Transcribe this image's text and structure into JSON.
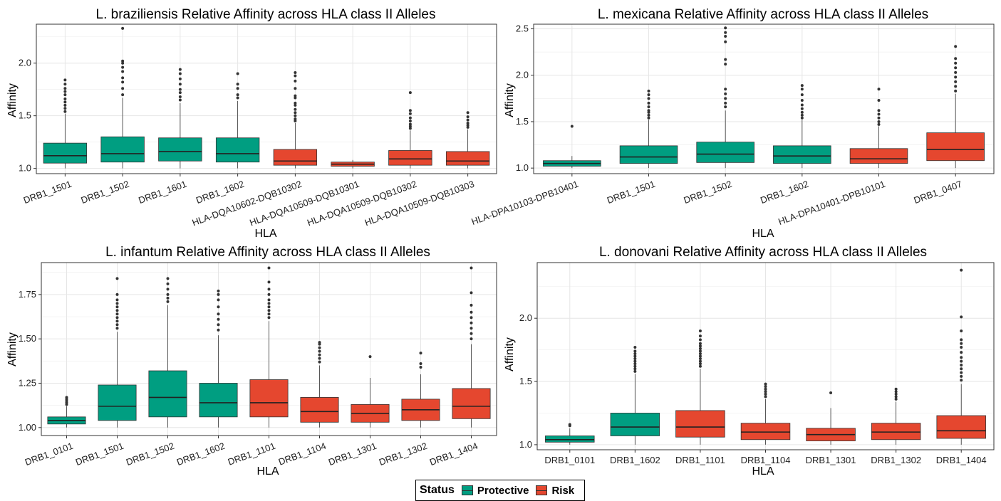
{
  "colors": {
    "Protective": "#009E81",
    "Risk": "#E5472F"
  },
  "legend": {
    "title": "Status",
    "items": [
      {
        "label": "Protective"
      },
      {
        "label": "Risk"
      }
    ]
  },
  "chart_data": [
    {
      "type": "box",
      "title": "L. braziliensis Relative Affinity across HLA class II Alleles",
      "xlabel": "HLA",
      "ylabel": "Affinity",
      "ylim": [
        0.95,
        2.37
      ],
      "yticks": [
        1.0,
        1.5,
        2.0
      ],
      "ytick_labels": [
        "1.0",
        "1.5",
        "2.0"
      ],
      "categories": [
        "DRB1_1501",
        "DRB1_1502",
        "DRB1_1601",
        "DRB1_1602",
        "HLA-DQA10602-DQB10302",
        "HLA-DQA10509-DQB10301",
        "HLA-DQA10509-DQB10302",
        "HLA-DQA10509-DQB10303"
      ],
      "boxes": [
        {
          "status": "Protective",
          "min": 1.0,
          "q1": 1.05,
          "median": 1.12,
          "q3": 1.24,
          "max": 1.52,
          "outliers": [
            1.54,
            1.57,
            1.6,
            1.63,
            1.66,
            1.7,
            1.73,
            1.76,
            1.8,
            1.84
          ]
        },
        {
          "status": "Protective",
          "min": 1.0,
          "q1": 1.06,
          "median": 1.14,
          "q3": 1.3,
          "max": 1.67,
          "outliers": [
            1.7,
            1.76,
            1.82,
            1.86,
            1.92,
            1.96,
            2.0,
            2.02,
            2.33
          ]
        },
        {
          "status": "Protective",
          "min": 1.0,
          "q1": 1.07,
          "median": 1.16,
          "q3": 1.29,
          "max": 1.62,
          "outliers": [
            1.65,
            1.68,
            1.72,
            1.75,
            1.8,
            1.85,
            1.9,
            1.94
          ]
        },
        {
          "status": "Protective",
          "min": 1.0,
          "q1": 1.06,
          "median": 1.14,
          "q3": 1.29,
          "max": 1.64,
          "outliers": [
            1.67,
            1.7,
            1.76,
            1.8,
            1.9
          ]
        },
        {
          "status": "Risk",
          "min": 1.0,
          "q1": 1.03,
          "median": 1.07,
          "q3": 1.18,
          "max": 1.43,
          "outliers": [
            1.45,
            1.47,
            1.5,
            1.53,
            1.56,
            1.6,
            1.62,
            1.67,
            1.69,
            1.76,
            1.83,
            1.88,
            1.91
          ]
        },
        {
          "status": "Risk",
          "min": 1.0,
          "q1": 1.02,
          "median": 1.04,
          "q3": 1.06,
          "max": 1.08,
          "outliers": []
        },
        {
          "status": "Risk",
          "min": 1.0,
          "q1": 1.03,
          "median": 1.09,
          "q3": 1.17,
          "max": 1.36,
          "outliers": [
            1.38,
            1.4,
            1.42,
            1.45,
            1.48,
            1.52,
            1.55,
            1.72
          ]
        },
        {
          "status": "Risk",
          "min": 1.0,
          "q1": 1.03,
          "median": 1.07,
          "q3": 1.16,
          "max": 1.37,
          "outliers": [
            1.39,
            1.41,
            1.43,
            1.46,
            1.49,
            1.53
          ]
        }
      ]
    },
    {
      "type": "box",
      "title": "L. mexicana Relative Affinity across HLA class II Alleles",
      "xlabel": "HLA",
      "ylabel": "Affinity",
      "ylim": [
        0.94,
        2.55
      ],
      "yticks": [
        1.0,
        1.5,
        2.0,
        2.5
      ],
      "ytick_labels": [
        "1.0",
        "1.5",
        "2.0",
        "2.5"
      ],
      "categories": [
        "HLA-DPA10103-DPB10401",
        "DRB1_1501",
        "DRB1_1502",
        "DRB1_1602",
        "HLA-DPA10401-DPB10101",
        "DRB1_0407"
      ],
      "boxes": [
        {
          "status": "Protective",
          "min": 1.0,
          "q1": 1.02,
          "median": 1.05,
          "q3": 1.08,
          "max": 1.13,
          "outliers": [
            1.45
          ]
        },
        {
          "status": "Protective",
          "min": 1.0,
          "q1": 1.05,
          "median": 1.12,
          "q3": 1.24,
          "max": 1.52,
          "outliers": [
            1.54,
            1.57,
            1.6,
            1.62,
            1.66,
            1.7,
            1.75,
            1.79,
            1.83
          ]
        },
        {
          "status": "Protective",
          "min": 1.0,
          "q1": 1.06,
          "median": 1.15,
          "q3": 1.28,
          "max": 1.62,
          "outliers": [
            1.66,
            1.7,
            1.75,
            1.8,
            1.85,
            2.12,
            2.17,
            2.36,
            2.42,
            2.46,
            2.51
          ]
        },
        {
          "status": "Protective",
          "min": 1.0,
          "q1": 1.05,
          "median": 1.13,
          "q3": 1.24,
          "max": 1.52,
          "outliers": [
            1.54,
            1.57,
            1.6,
            1.64,
            1.68,
            1.73,
            1.79,
            1.85,
            1.89
          ]
        },
        {
          "status": "Risk",
          "min": 1.0,
          "q1": 1.05,
          "median": 1.1,
          "q3": 1.21,
          "max": 1.45,
          "outliers": [
            1.47,
            1.5,
            1.54,
            1.58,
            1.62,
            1.73,
            1.85
          ]
        },
        {
          "status": "Risk",
          "min": 1.0,
          "q1": 1.08,
          "median": 1.2,
          "q3": 1.38,
          "max": 1.8,
          "outliers": [
            1.83,
            1.88,
            1.93,
            1.98,
            2.03,
            2.08,
            2.13,
            2.18,
            2.31
          ]
        }
      ]
    },
    {
      "type": "box",
      "title": "L. infantum Relative Affinity across HLA class II Alleles",
      "xlabel": "HLA",
      "ylabel": "Affinity",
      "ylim": [
        0.955,
        1.93
      ],
      "yticks": [
        1.0,
        1.25,
        1.5,
        1.75
      ],
      "ytick_labels": [
        "1.00",
        "1.25",
        "1.50",
        "1.75"
      ],
      "categories": [
        "DRB1_0101",
        "DRB1_1501",
        "DRB1_1502",
        "DRB1_1602",
        "DRB1_1101",
        "DRB1_1104",
        "DRB1_1301",
        "DRB1_1302",
        "DRB1_1404"
      ],
      "boxes": [
        {
          "status": "Protective",
          "min": 1.0,
          "q1": 1.02,
          "median": 1.04,
          "q3": 1.06,
          "max": 1.12,
          "outliers": [
            1.13,
            1.14,
            1.15,
            1.16,
            1.17
          ]
        },
        {
          "status": "Protective",
          "min": 1.0,
          "q1": 1.04,
          "median": 1.12,
          "q3": 1.24,
          "max": 1.54,
          "outliers": [
            1.56,
            1.58,
            1.6,
            1.62,
            1.64,
            1.66,
            1.68,
            1.7,
            1.72,
            1.75,
            1.84
          ]
        },
        {
          "status": "Protective",
          "min": 1.0,
          "q1": 1.06,
          "median": 1.17,
          "q3": 1.32,
          "max": 1.69,
          "outliers": [
            1.71,
            1.73,
            1.75,
            1.78,
            1.81,
            1.84
          ]
        },
        {
          "status": "Protective",
          "min": 1.0,
          "q1": 1.06,
          "median": 1.14,
          "q3": 1.25,
          "max": 1.52,
          "outliers": [
            1.55,
            1.58,
            1.61,
            1.64,
            1.68,
            1.72,
            1.75,
            1.77
          ]
        },
        {
          "status": "Risk",
          "min": 1.0,
          "q1": 1.06,
          "median": 1.14,
          "q3": 1.27,
          "max": 1.6,
          "outliers": [
            1.62,
            1.64,
            1.66,
            1.68,
            1.7,
            1.72,
            1.75,
            1.78,
            1.82,
            1.9
          ]
        },
        {
          "status": "Risk",
          "min": 1.0,
          "q1": 1.03,
          "median": 1.09,
          "q3": 1.17,
          "max": 1.35,
          "outliers": [
            1.37,
            1.39,
            1.41,
            1.43,
            1.45,
            1.47,
            1.48
          ]
        },
        {
          "status": "Risk",
          "min": 1.0,
          "q1": 1.03,
          "median": 1.08,
          "q3": 1.13,
          "max": 1.28,
          "outliers": [
            1.4
          ]
        },
        {
          "status": "Risk",
          "min": 1.0,
          "q1": 1.04,
          "median": 1.1,
          "q3": 1.16,
          "max": 1.3,
          "outliers": [
            1.34,
            1.36,
            1.42
          ]
        },
        {
          "status": "Risk",
          "min": 1.0,
          "q1": 1.05,
          "median": 1.12,
          "q3": 1.22,
          "max": 1.47,
          "outliers": [
            1.5,
            1.53,
            1.56,
            1.59,
            1.62,
            1.65,
            1.69,
            1.76,
            1.9
          ]
        }
      ]
    },
    {
      "type": "box",
      "title": "L. donovani Relative Affinity across HLA class II Alleles",
      "xlabel": "HLA",
      "ylabel": "Affinity",
      "ylim": [
        0.96,
        2.44
      ],
      "yticks": [
        1.0,
        1.5,
        2.0
      ],
      "ytick_labels": [
        "1.0",
        "1.5",
        "2.0"
      ],
      "categories": [
        "DRB1_0101",
        "DRB1_1602",
        "DRB1_1101",
        "DRB1_1104",
        "DRB1_1301",
        "DRB1_1302",
        "DRB1_1404"
      ],
      "boxes": [
        {
          "status": "Protective",
          "min": 1.0,
          "q1": 1.02,
          "median": 1.04,
          "q3": 1.07,
          "max": 1.13,
          "outliers": [
            1.15,
            1.16
          ]
        },
        {
          "status": "Protective",
          "min": 1.0,
          "q1": 1.07,
          "median": 1.14,
          "q3": 1.25,
          "max": 1.56,
          "outliers": [
            1.58,
            1.6,
            1.62,
            1.64,
            1.66,
            1.68,
            1.7,
            1.72,
            1.74,
            1.77
          ]
        },
        {
          "status": "Risk",
          "min": 1.0,
          "q1": 1.06,
          "median": 1.14,
          "q3": 1.27,
          "max": 1.6,
          "outliers": [
            1.62,
            1.64,
            1.66,
            1.68,
            1.7,
            1.72,
            1.74,
            1.76,
            1.78,
            1.8,
            1.83,
            1.86,
            1.9
          ]
        },
        {
          "status": "Risk",
          "min": 1.0,
          "q1": 1.04,
          "median": 1.1,
          "q3": 1.17,
          "max": 1.36,
          "outliers": [
            1.38,
            1.4,
            1.42,
            1.44,
            1.46,
            1.48
          ]
        },
        {
          "status": "Risk",
          "min": 1.0,
          "q1": 1.03,
          "median": 1.08,
          "q3": 1.13,
          "max": 1.29,
          "outliers": [
            1.41
          ]
        },
        {
          "status": "Risk",
          "min": 1.0,
          "q1": 1.04,
          "median": 1.1,
          "q3": 1.17,
          "max": 1.34,
          "outliers": [
            1.36,
            1.38,
            1.4,
            1.42,
            1.44
          ]
        },
        {
          "status": "Risk",
          "min": 1.0,
          "q1": 1.05,
          "median": 1.11,
          "q3": 1.23,
          "max": 1.48,
          "outliers": [
            1.51,
            1.54,
            1.57,
            1.6,
            1.63,
            1.66,
            1.69,
            1.73,
            1.77,
            1.8,
            1.83,
            1.9,
            2.01,
            2.38
          ]
        }
      ]
    }
  ]
}
